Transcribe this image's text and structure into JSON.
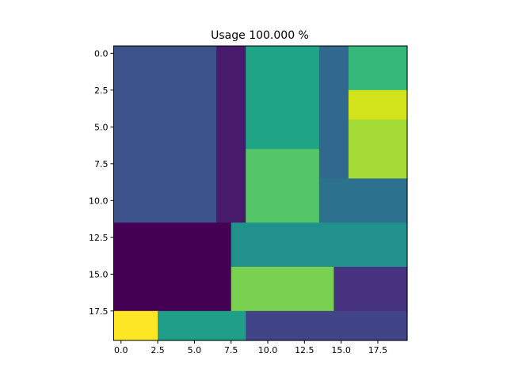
{
  "chart_data": {
    "type": "heatmap",
    "title": "Usage 100.000  %",
    "xlabel": "",
    "ylabel": "",
    "colormap": "viridis",
    "grid": false,
    "xlim": [
      -0.5,
      19.5
    ],
    "ylim": [
      19.5,
      -0.5
    ],
    "x_ticks": [
      0.0,
      2.5,
      5.0,
      7.5,
      10.0,
      12.5,
      15.0,
      17.5
    ],
    "x_tick_labels": [
      "0.0",
      "2.5",
      "5.0",
      "7.5",
      "10.0",
      "12.5",
      "15.0",
      "17.5"
    ],
    "y_ticks": [
      0.0,
      2.5,
      5.0,
      7.5,
      10.0,
      12.5,
      15.0,
      17.5
    ],
    "y_tick_labels": [
      "0.0",
      "2.5",
      "5.0",
      "7.5",
      "10.0",
      "12.5",
      "15.0",
      "17.5"
    ],
    "regions": [
      {
        "col_start": 0,
        "col_end": 6,
        "row_start": 0,
        "row_end": 11,
        "color": "#3b528b"
      },
      {
        "col_start": 7,
        "col_end": 8,
        "row_start": 0,
        "row_end": 11,
        "color": "#481a6c"
      },
      {
        "col_start": 9,
        "col_end": 13,
        "row_start": 0,
        "row_end": 6,
        "color": "#20a486"
      },
      {
        "col_start": 9,
        "col_end": 13,
        "row_start": 7,
        "row_end": 11,
        "color": "#54c568"
      },
      {
        "col_start": 14,
        "col_end": 15,
        "row_start": 0,
        "row_end": 8,
        "color": "#31688e"
      },
      {
        "col_start": 16,
        "col_end": 19,
        "row_start": 0,
        "row_end": 2,
        "color": "#35b779"
      },
      {
        "col_start": 16,
        "col_end": 19,
        "row_start": 3,
        "row_end": 4,
        "color": "#d2e21b"
      },
      {
        "col_start": 16,
        "col_end": 19,
        "row_start": 5,
        "row_end": 8,
        "color": "#a5db36"
      },
      {
        "col_start": 14,
        "col_end": 19,
        "row_start": 9,
        "row_end": 11,
        "color": "#2c728e"
      },
      {
        "col_start": 0,
        "col_end": 7,
        "row_start": 12,
        "row_end": 17,
        "color": "#440154"
      },
      {
        "col_start": 8,
        "col_end": 19,
        "row_start": 12,
        "row_end": 14,
        "color": "#21918c"
      },
      {
        "col_start": 8,
        "col_end": 14,
        "row_start": 15,
        "row_end": 17,
        "color": "#7ad151"
      },
      {
        "col_start": 15,
        "col_end": 19,
        "row_start": 15,
        "row_end": 17,
        "color": "#46327e"
      },
      {
        "col_start": 0,
        "col_end": 2,
        "row_start": 18,
        "row_end": 19,
        "color": "#fde725"
      },
      {
        "col_start": 3,
        "col_end": 8,
        "row_start": 18,
        "row_end": 19,
        "color": "#1f9e89"
      },
      {
        "col_start": 9,
        "col_end": 19,
        "row_start": 18,
        "row_end": 19,
        "color": "#414487"
      }
    ]
  }
}
